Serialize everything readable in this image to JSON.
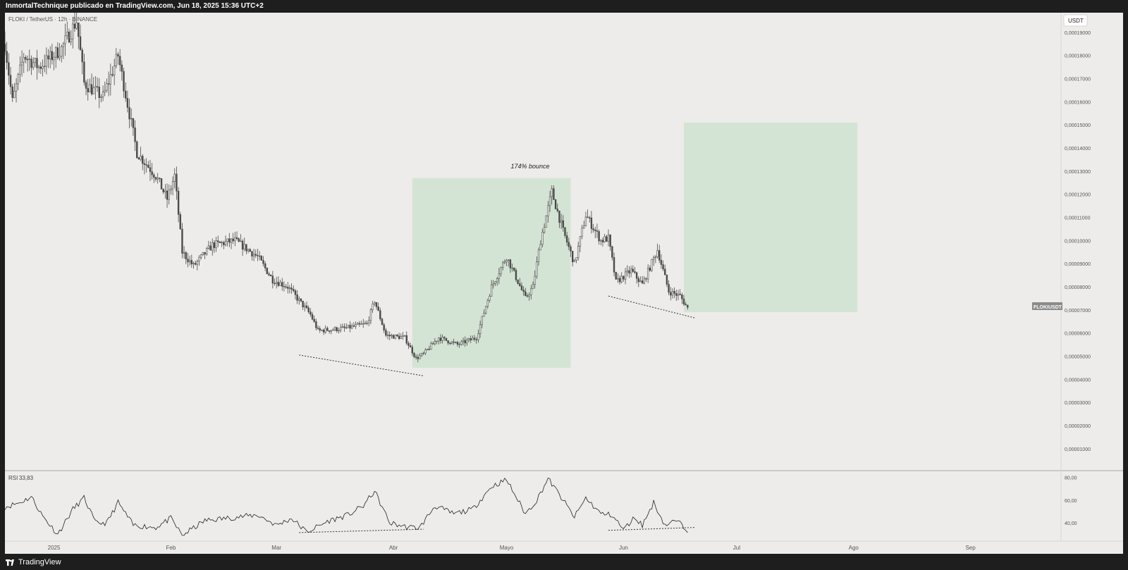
{
  "header": {
    "publisher_line": "InmortalTechnique publicado en TradingView.com, Jun 18, 2025 15:36 UTC+2"
  },
  "symbol_line": "FLOKI / TetherUS · 12h · BINANCE",
  "currency_button": "USDT",
  "symbol_badge": "FLOKIUSDT",
  "annotation": "174% bounce",
  "rsi_label": "RSI",
  "rsi_value": "33,83",
  "footer": {
    "brand": "TradingView"
  },
  "colors": {
    "background": "#edecea",
    "candles": "#4a4a4a",
    "zone": "#d4e4d4",
    "frame": "#1e1e1e",
    "badge": "#8a8a8a"
  },
  "chart_data": [
    {
      "type": "candlestick",
      "title": "FLOKI / TetherUS · 12h · BINANCE",
      "ylabel": "USDT",
      "ylim": [
        5e-07,
        0.0001985
      ],
      "y_ticks": [
        "0,00019000",
        "0,00018000",
        "0,00017000",
        "0,00016000",
        "0,00015000",
        "0,00014000",
        "0,00013000",
        "0,00012000",
        "0,00011000",
        "0,00010000",
        "0,00009000",
        "0,00008000",
        "0,00007000",
        "0,00006000",
        "0,00005000",
        "0,00004000",
        "0,00003000",
        "0,00002000",
        "0,00001000"
      ],
      "y_tick_values": [
        0.00019,
        0.00018,
        0.00017,
        0.00016,
        0.00015,
        0.00014,
        0.00013,
        0.00012,
        0.00011,
        0.0001,
        9e-05,
        8e-05,
        7e-05,
        6e-05,
        5e-05,
        4e-05,
        3e-05,
        2e-05,
        1e-05
      ],
      "x_ticks": [
        "2025",
        "Feb",
        "Mar",
        "Abr",
        "Mayo",
        "Jun",
        "Jul",
        "Ago",
        "Sep"
      ],
      "x_tick_dates": [
        "2025-01-01",
        "2025-02-01",
        "2025-03-01",
        "2025-04-01",
        "2025-05-01",
        "2025-06-01",
        "2025-07-01",
        "2025-08-01",
        "2025-09-01"
      ],
      "x_range": [
        "2024-12-19",
        "2025-09-25"
      ],
      "last_price": 7.07e-05,
      "key_points": [
        {
          "date": "2024-12-19",
          "price": 0.000185
        },
        {
          "date": "2024-12-21",
          "price": 0.00016
        },
        {
          "date": "2024-12-24",
          "price": 0.00018
        },
        {
          "date": "2024-12-28",
          "price": 0.000175
        },
        {
          "date": "2025-01-03",
          "price": 0.000183
        },
        {
          "date": "2025-01-07",
          "price": 0.000195
        },
        {
          "date": "2025-01-09",
          "price": 0.000168
        },
        {
          "date": "2025-01-14",
          "price": 0.000162
        },
        {
          "date": "2025-01-18",
          "price": 0.00018
        },
        {
          "date": "2025-01-23",
          "price": 0.000138
        },
        {
          "date": "2025-01-28",
          "price": 0.000128
        },
        {
          "date": "2025-01-31",
          "price": 0.000118
        },
        {
          "date": "2025-02-02",
          "price": 0.000128
        },
        {
          "date": "2025-02-04",
          "price": 9.5e-05
        },
        {
          "date": "2025-02-07",
          "price": 8.9e-05
        },
        {
          "date": "2025-02-12",
          "price": 9.8e-05
        },
        {
          "date": "2025-02-18",
          "price": 0.0001
        },
        {
          "date": "2025-02-24",
          "price": 9.3e-05
        },
        {
          "date": "2025-02-28",
          "price": 8.3e-05
        },
        {
          "date": "2025-03-04",
          "price": 8e-05
        },
        {
          "date": "2025-03-10",
          "price": 6.8e-05
        },
        {
          "date": "2025-03-12",
          "price": 6.1e-05
        },
        {
          "date": "2025-03-19",
          "price": 6.2e-05
        },
        {
          "date": "2025-03-25",
          "price": 6.4e-05
        },
        {
          "date": "2025-03-27",
          "price": 7.4e-05
        },
        {
          "date": "2025-03-30",
          "price": 5.9e-05
        },
        {
          "date": "2025-04-04",
          "price": 5.8e-05
        },
        {
          "date": "2025-04-07",
          "price": 4.9e-05
        },
        {
          "date": "2025-04-09",
          "price": 5.1e-05
        },
        {
          "date": "2025-04-13",
          "price": 5.8e-05
        },
        {
          "date": "2025-04-18",
          "price": 5.5e-05
        },
        {
          "date": "2025-04-23",
          "price": 5.8e-05
        },
        {
          "date": "2025-04-27",
          "price": 8e-05
        },
        {
          "date": "2025-05-01",
          "price": 9.3e-05
        },
        {
          "date": "2025-05-06",
          "price": 7.5e-05
        },
        {
          "date": "2025-05-08",
          "price": 8e-05
        },
        {
          "date": "2025-05-10",
          "price": 0.0001
        },
        {
          "date": "2025-05-13",
          "price": 0.000121
        },
        {
          "date": "2025-05-16",
          "price": 0.000104
        },
        {
          "date": "2025-05-19",
          "price": 9e-05
        },
        {
          "date": "2025-05-22",
          "price": 0.000111
        },
        {
          "date": "2025-05-26",
          "price": 0.0001
        },
        {
          "date": "2025-05-28",
          "price": 0.000101
        },
        {
          "date": "2025-05-30",
          "price": 8.2e-05
        },
        {
          "date": "2025-06-03",
          "price": 8.7e-05
        },
        {
          "date": "2025-06-06",
          "price": 8.1e-05
        },
        {
          "date": "2025-06-10",
          "price": 9.6e-05
        },
        {
          "date": "2025-06-13",
          "price": 7.8e-05
        },
        {
          "date": "2025-06-16",
          "price": 7.6e-05
        },
        {
          "date": "2025-06-18",
          "price": 7.07e-05
        }
      ],
      "zones": [
        {
          "label": "174% bounce",
          "x_start": "2025-04-06",
          "x_end": "2025-05-18",
          "y_low": 4.5e-05,
          "y_high": 0.000127
        },
        {
          "x_start": "2025-06-17",
          "x_end": "2025-08-02",
          "y_low": 6.9e-05,
          "y_high": 0.000151
        }
      ],
      "trendlines": [
        {
          "start": [
            "2025-03-07",
            5.05e-05
          ],
          "end": [
            "2025-04-09",
            4.15e-05
          ]
        },
        {
          "start": [
            "2025-05-28",
            7.6e-05
          ],
          "end": [
            "2025-06-20",
            6.65e-05
          ]
        }
      ]
    },
    {
      "type": "line",
      "title": "RSI",
      "ylim": [
        24,
        86
      ],
      "y_ticks": [
        "80,00",
        "60,00",
        "40,00"
      ],
      "y_tick_values": [
        80,
        60,
        40
      ],
      "last_value": 33.83,
      "key_points": [
        {
          "date": "2024-12-19",
          "value": 54
        },
        {
          "date": "2024-12-23",
          "value": 58
        },
        {
          "date": "2024-12-26",
          "value": 63
        },
        {
          "date": "2024-12-29",
          "value": 46
        },
        {
          "date": "2025-01-02",
          "value": 30
        },
        {
          "date": "2025-01-06",
          "value": 52
        },
        {
          "date": "2025-01-09",
          "value": 62
        },
        {
          "date": "2025-01-12",
          "value": 40
        },
        {
          "date": "2025-01-15",
          "value": 40
        },
        {
          "date": "2025-01-18",
          "value": 58
        },
        {
          "date": "2025-01-22",
          "value": 38
        },
        {
          "date": "2025-01-28",
          "value": 36
        },
        {
          "date": "2025-02-01",
          "value": 44
        },
        {
          "date": "2025-02-04",
          "value": 29
        },
        {
          "date": "2025-02-10",
          "value": 42
        },
        {
          "date": "2025-02-18",
          "value": 45
        },
        {
          "date": "2025-02-24",
          "value": 47
        },
        {
          "date": "2025-03-01",
          "value": 38
        },
        {
          "date": "2025-03-05",
          "value": 44
        },
        {
          "date": "2025-03-09",
          "value": 32
        },
        {
          "date": "2025-03-15",
          "value": 42
        },
        {
          "date": "2025-03-20",
          "value": 47
        },
        {
          "date": "2025-03-24",
          "value": 55
        },
        {
          "date": "2025-03-27",
          "value": 68
        },
        {
          "date": "2025-03-31",
          "value": 40
        },
        {
          "date": "2025-04-05",
          "value": 36
        },
        {
          "date": "2025-04-08",
          "value": 36
        },
        {
          "date": "2025-04-12",
          "value": 55
        },
        {
          "date": "2025-04-17",
          "value": 48
        },
        {
          "date": "2025-04-22",
          "value": 52
        },
        {
          "date": "2025-04-27",
          "value": 72
        },
        {
          "date": "2025-05-01",
          "value": 78
        },
        {
          "date": "2025-05-06",
          "value": 48
        },
        {
          "date": "2025-05-09",
          "value": 60
        },
        {
          "date": "2025-05-12",
          "value": 79
        },
        {
          "date": "2025-05-16",
          "value": 60
        },
        {
          "date": "2025-05-19",
          "value": 45
        },
        {
          "date": "2025-05-22",
          "value": 62
        },
        {
          "date": "2025-05-26",
          "value": 48
        },
        {
          "date": "2025-05-29",
          "value": 47
        },
        {
          "date": "2025-06-01",
          "value": 34
        },
        {
          "date": "2025-06-04",
          "value": 45
        },
        {
          "date": "2025-06-06",
          "value": 38
        },
        {
          "date": "2025-06-09",
          "value": 58
        },
        {
          "date": "2025-06-12",
          "value": 38
        },
        {
          "date": "2025-06-15",
          "value": 42
        },
        {
          "date": "2025-06-18",
          "value": 33.83
        }
      ],
      "trendlines": [
        {
          "start": [
            "2025-03-07",
            31.5
          ],
          "end": [
            "2025-04-09",
            34.5
          ]
        },
        {
          "start": [
            "2025-05-28",
            33.5
          ],
          "end": [
            "2025-06-20",
            36
          ]
        }
      ]
    }
  ]
}
